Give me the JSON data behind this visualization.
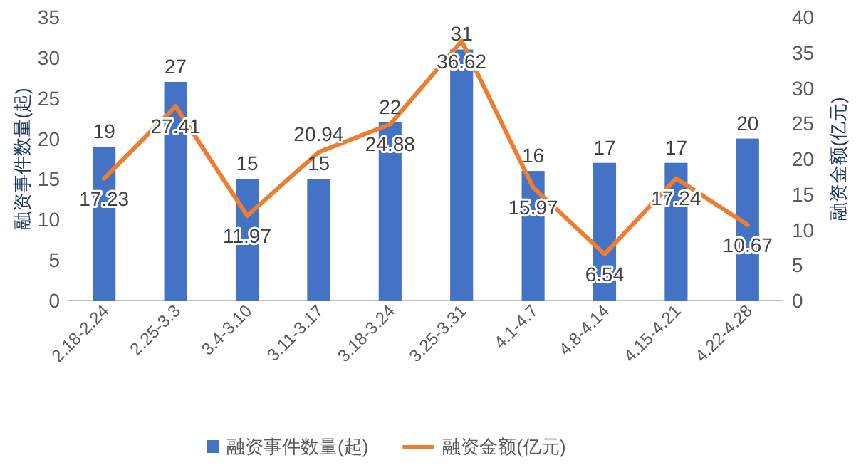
{
  "chart_data": {
    "type": "bar",
    "categories": [
      "2.18-2.24",
      "2.25-3.3",
      "3.4-3.10",
      "3.11-3.17",
      "3.18-3.24",
      "3.25-3.31",
      "4.1-4.7",
      "4.8-4.14",
      "4.15-4.21",
      "4.22-4.28"
    ],
    "series": [
      {
        "name": "融资事件数量(起)",
        "color": "#4472c4",
        "values": [
          19,
          27,
          15,
          15,
          22,
          31,
          16,
          17,
          17,
          20
        ]
      },
      {
        "name": "融资金额(亿元)",
        "type": "line",
        "axis": "y2",
        "color": "#ed7d31",
        "values": [
          17.23,
          27.41,
          11.97,
          20.94,
          24.88,
          36.62,
          15.97,
          6.54,
          17.24,
          10.67
        ]
      }
    ],
    "ylabel": "融资事件数量(起)",
    "y2label": "融资金额(亿元)",
    "ylim": [
      0,
      35
    ],
    "yticks": [
      0,
      5,
      10,
      15,
      20,
      25,
      30,
      35
    ],
    "y2lim": [
      0,
      40
    ],
    "y2ticks": [
      0,
      5,
      10,
      15,
      20,
      25,
      30,
      35,
      40
    ],
    "data_labels": true,
    "legend": "bottom",
    "grid": false,
    "marker": "none",
    "line_style": "solid"
  }
}
